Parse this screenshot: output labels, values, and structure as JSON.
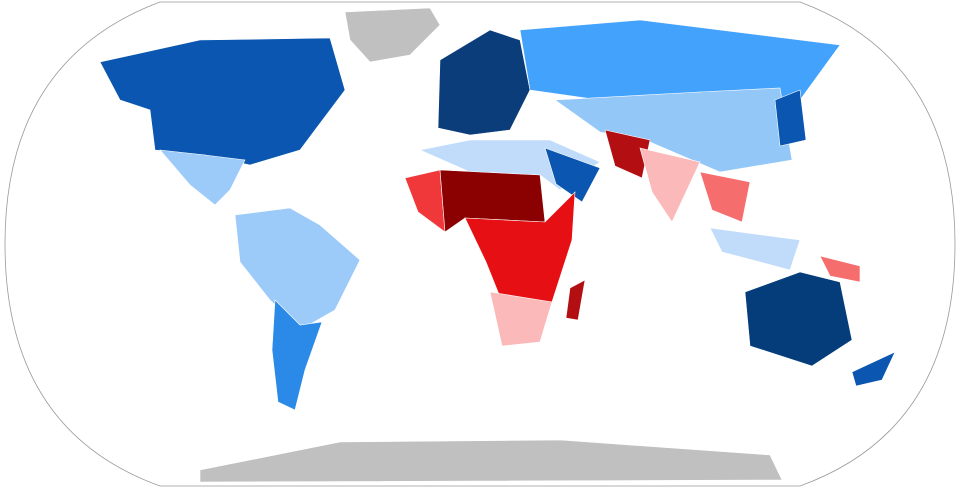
{
  "map": {
    "palette": [
      "#c0c0c0",
      "#0a56b0",
      "#9ccbfa",
      "#2b8ae8",
      "#0b3d7a",
      "#43a2fb",
      "#93c7f7",
      "#c0dcfa",
      "#8b0000",
      "#f0383b",
      "#e61014",
      "#fcb9b9",
      "#053c7a",
      "#f66d6d",
      "#b30f12"
    ]
  }
}
